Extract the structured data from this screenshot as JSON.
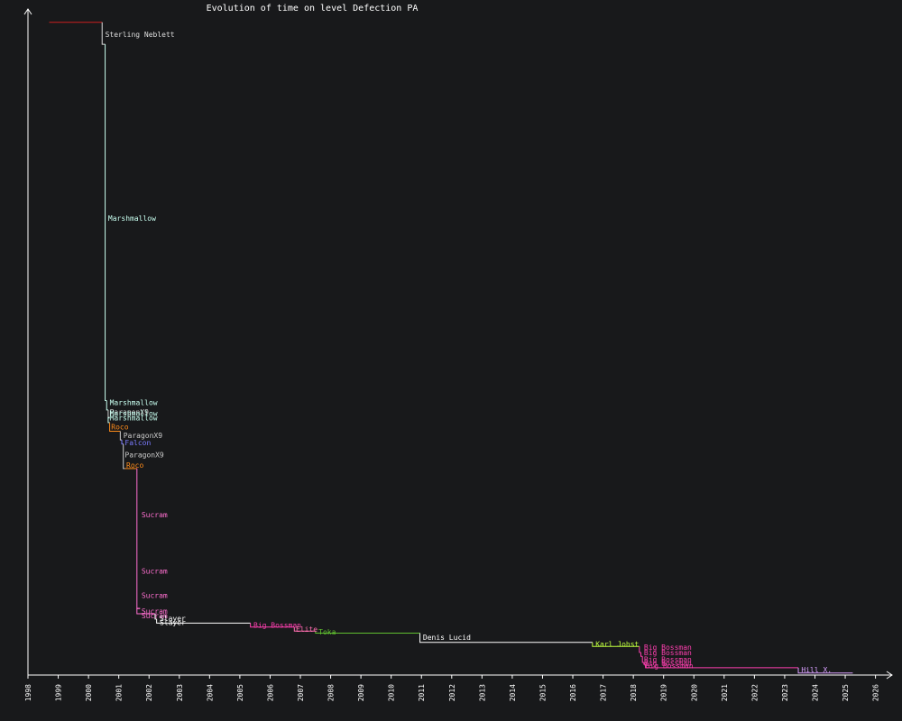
{
  "chart_data": {
    "type": "line",
    "title": "Evolution of time on level Defection PA",
    "xlabel": "",
    "ylabel": "",
    "x_ticks": [
      "1998",
      "1999",
      "2000",
      "2001",
      "2002",
      "2003",
      "2004",
      "2005",
      "2006",
      "2007",
      "2008",
      "2009",
      "2010",
      "2011",
      "2012",
      "2013",
      "2014",
      "2015",
      "2016",
      "2017",
      "2018",
      "2019",
      "2020",
      "2021",
      "2022",
      "2023",
      "2024",
      "2025",
      "2026"
    ],
    "xlim": [
      1998.0,
      2026.0
    ],
    "ylim": [
      0,
      100
    ],
    "y_ticks_labeled": false,
    "grid": false,
    "legend": "none",
    "colors": {
      "background": "#18191b",
      "axis": "#ffffff",
      "title": "#ffffff"
    },
    "segments": [
      {
        "name": "",
        "color": "#cc1f1f",
        "x0": 1998.7,
        "x1": 2000.45,
        "y": 98.0,
        "label": ""
      },
      {
        "name": "Sterling Neblett",
        "color": "#dddddd",
        "x0": 2000.45,
        "x1": 2000.55,
        "y": 94.7,
        "label": "Sterling Neblett",
        "label_x": 2000.55,
        "label_y": 96.2
      },
      {
        "name": "Marshmallow",
        "color": "#c8fff0",
        "x0": 2000.55,
        "x1": 2000.6,
        "y": 41.2,
        "label": "Marshmallow",
        "label_x": 2000.65,
        "label_y": 68.6
      },
      {
        "name": "Marshmallow",
        "color": "#c8fff0",
        "x0": 2000.6,
        "x1": 2000.65,
        "y": 39.8,
        "label": "Marshmallow",
        "label_x": 2000.7,
        "label_y": 40.9
      },
      {
        "name": "ParagonX9",
        "color": "#cccccc",
        "x0": 2000.65,
        "x1": 2000.7,
        "y": 38.7,
        "label": "ParagonX9",
        "label_x": 2000.7,
        "label_y": 39.5
      },
      {
        "name": "Marshmallow",
        "color": "#c8fff0",
        "x0": 2000.65,
        "x1": 2000.7,
        "y": 38.6,
        "label": "Marshmallow",
        "label_x": 2000.7,
        "label_y": 39.3
      },
      {
        "name": "Marshmallow",
        "color": "#c8fff0",
        "x0": 2000.65,
        "x1": 2000.7,
        "y": 37.9,
        "label": "Marshmallow",
        "label_x": 2000.7,
        "label_y": 38.6
      },
      {
        "name": "Roco",
        "color": "#ff8c1a",
        "x0": 2000.7,
        "x1": 2001.05,
        "y": 36.6,
        "label": "Roco",
        "label_x": 2000.75,
        "label_y": 37.3
      },
      {
        "name": "ParagonX9",
        "color": "#cccccc",
        "x0": 2001.05,
        "x1": 2001.1,
        "y": 35.3,
        "label": "ParagonX9",
        "label_x": 2001.15,
        "label_y": 36.0
      },
      {
        "name": "Falcon",
        "color": "#7b7bff",
        "x0": 2001.1,
        "x1": 2001.15,
        "y": 34.7,
        "label": "Falcon",
        "label_x": 2001.2,
        "label_y": 34.9
      },
      {
        "name": "ParagonX9",
        "color": "#cccccc",
        "x0": 2001.15,
        "x1": 2001.2,
        "y": 31.0,
        "label": "ParagonX9",
        "label_x": 2001.2,
        "label_y": 33.1
      },
      {
        "name": "Roco",
        "color": "#ff8c1a",
        "x0": 2001.2,
        "x1": 2001.6,
        "y": 31.0,
        "label": "Roco",
        "label_x": 2001.25,
        "label_y": 31.5
      },
      {
        "name": "Sucram",
        "color": "#ff6fd0",
        "x0": 2001.6,
        "x1": 2001.7,
        "y": 10.0,
        "label": "Sucram",
        "label_x": 2001.75,
        "label_y": 24.1
      },
      {
        "name": "Sucram",
        "color": "#ff6fd0",
        "x0": 2001.6,
        "x1": 2001.7,
        "y": 10.0,
        "label": "Sucram",
        "label_x": 2001.75,
        "label_y": 15.6
      },
      {
        "name": "Sucram",
        "color": "#ff6fd0",
        "x0": 2001.6,
        "x1": 2001.7,
        "y": 10.0,
        "label": "Sucram",
        "label_x": 2001.75,
        "label_y": 12.0
      },
      {
        "name": "Sucram",
        "color": "#ff6fd0",
        "x0": 2001.6,
        "x1": 2001.7,
        "y": 10.0,
        "label": "Sucram",
        "label_x": 2001.75,
        "label_y": 9.6
      },
      {
        "name": "Sucram",
        "color": "#ff6fd0",
        "x0": 2001.6,
        "x1": 2002.2,
        "y": 9.2,
        "label": "Sucram",
        "label_x": 2001.75,
        "label_y": 8.9
      },
      {
        "name": "Slayer",
        "color": "#ffffff",
        "x0": 2002.2,
        "x1": 2002.25,
        "y": 8.4,
        "label": "Slayer",
        "label_x": 2002.35,
        "label_y": 8.5
      },
      {
        "name": "Slayer",
        "color": "#ffffff",
        "x0": 2002.25,
        "x1": 2005.35,
        "y": 7.8,
        "label": "Slayer",
        "label_x": 2002.35,
        "label_y": 7.9
      },
      {
        "name": "Big Bossman",
        "color": "#ff3fb0",
        "x0": 2005.35,
        "x1": 2006.8,
        "y": 7.2,
        "label": "Big Bossman",
        "label_x": 2005.45,
        "label_y": 7.5
      },
      {
        "name": "Elite",
        "color": "#ff6fb0",
        "x0": 2006.8,
        "x1": 2007.5,
        "y": 6.6,
        "label": "Elite",
        "label_x": 2006.85,
        "label_y": 6.9
      },
      {
        "name": "Toka",
        "color": "#5fbf2f",
        "x0": 2007.5,
        "x1": 2010.95,
        "y": 6.3,
        "label": "Toka",
        "label_x": 2007.6,
        "label_y": 6.5
      },
      {
        "name": "Denis Lucid",
        "color": "#ffffff",
        "x0": 2010.95,
        "x1": 2016.65,
        "y": 4.9,
        "label": "Denis Lucid",
        "label_x": 2011.05,
        "label_y": 5.7
      },
      {
        "name": "Karl Johst",
        "color": "#bfff3f",
        "x0": 2016.65,
        "x1": 2018.2,
        "y": 4.3,
        "label": "Karl Johst",
        "label_x": 2016.75,
        "label_y": 4.7
      },
      {
        "name": "Big Bossman",
        "color": "#ff3fb0",
        "x0": 2018.2,
        "x1": 2018.25,
        "y": 3.4,
        "label": "Big Bossman",
        "label_x": 2018.35,
        "label_y": 4.2
      },
      {
        "name": "Big Bossman",
        "color": "#ff3fb0",
        "x0": 2018.25,
        "x1": 2018.3,
        "y": 2.8,
        "label": "Big Bossman",
        "label_x": 2018.35,
        "label_y": 3.4
      },
      {
        "name": "Big Bossman",
        "color": "#ff3fb0",
        "x0": 2018.3,
        "x1": 2018.35,
        "y": 1.9,
        "label": "Big Bossman",
        "label_x": 2018.35,
        "label_y": 2.4
      },
      {
        "name": "Big Bossman",
        "color": "#ff3fb0",
        "x0": 2018.35,
        "x1": 2018.4,
        "y": 1.6,
        "label": "Big Bossman",
        "label_x": 2018.35,
        "label_y": 1.8
      },
      {
        "name": "Big Bossman",
        "color": "#ff3fb0",
        "x0": 2018.4,
        "x1": 2023.45,
        "y": 1.1,
        "label": "Big Bossman",
        "label_x": 2018.4,
        "label_y": 1.4
      },
      {
        "name": "Hill X.",
        "color": "#d8a0ff",
        "x0": 2023.45,
        "x1": 2025.25,
        "y": 0.3,
        "label": "Hill X.",
        "label_x": 2023.55,
        "label_y": 0.8
      }
    ]
  }
}
